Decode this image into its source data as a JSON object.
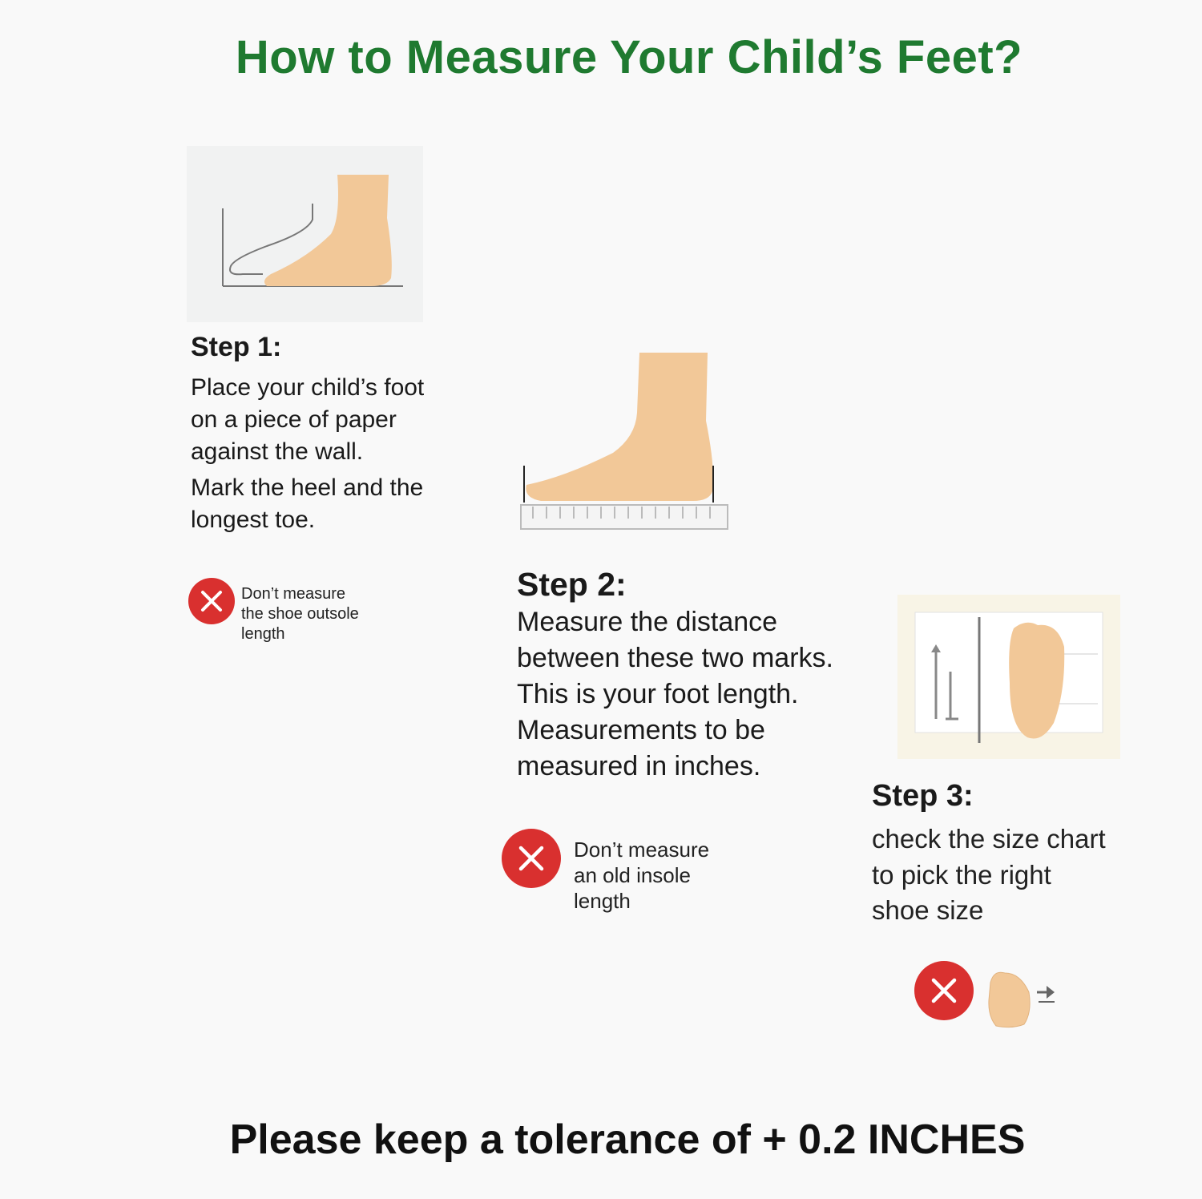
{
  "title": "How to Measure Your Child’s Feet?",
  "step1": {
    "heading": "Step 1:",
    "lines": [
      "Place your child’s foot",
      "on a piece of paper",
      "against the wall.",
      "Mark the heel and the",
      "longest toe."
    ],
    "warning": {
      "icon": "x-circle-icon",
      "lines": [
        "Don’t measure",
        "the shoe outsole",
        "length"
      ]
    }
  },
  "step2": {
    "heading": "Step 2:",
    "lines": [
      "Measure the distance",
      "between these two marks.",
      "This is your foot length.",
      "Measurements to be",
      "measured in inches."
    ],
    "warning": {
      "icon": "x-circle-icon",
      "lines": [
        "Don’t measure",
        "an old insole",
        "length"
      ]
    }
  },
  "step3": {
    "heading": "Step 3:",
    "lines": [
      "check the size chart",
      "to pick the right",
      "shoe size"
    ],
    "warning": {
      "icon": "x-circle-icon"
    }
  },
  "footer": "Please keep a tolerance of + 0.2 INCHES",
  "colors": {
    "title": "#1f7a30",
    "warning": "#d9302f",
    "skin": "#f2c898",
    "background": "#f9f9f9"
  }
}
